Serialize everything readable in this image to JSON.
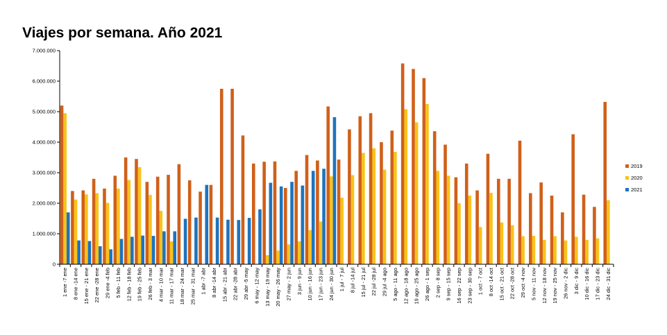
{
  "chart_data": {
    "type": "bar",
    "title": "Viajes por semana. Año 2021",
    "xlabel": "",
    "ylabel": "",
    "ylim": [
      0,
      7000000
    ],
    "y_ticks": [
      0,
      1000000,
      2000000,
      3000000,
      4000000,
      5000000,
      6000000,
      7000000
    ],
    "y_tick_labels": [
      "0",
      "1.000.000",
      "2.000.000",
      "3.000.000",
      "4.000.000",
      "5.000.000",
      "6.000.000",
      "7.000.000"
    ],
    "grid": false,
    "legend_position": "right",
    "categories": [
      "1 ene -7 ene",
      "8 ene -14 ene",
      "15 ene - 21 ene",
      "22 ene -28 ene",
      "29 ene -4 feb",
      "5 feb - 11 feb",
      "12 feb - 18 feb",
      "19 feb - 25 feb",
      "26 feb - 3 mar",
      "4 mar - 10 mar",
      "11 mar - 17 mar",
      "18 mar - 24 mar",
      "25 mar - 31 mar",
      "1 abr -7 abr",
      "8 abr -14 abr",
      "15 abr - 21 abr",
      "22 abr -28 abr",
      "29 abr -5 may",
      "6 may - 12 may",
      "13 may - 19 may",
      "20 may - 26 may",
      "27 may - 2 jun",
      "3 jun - 9 jun",
      "10 jun - 16 jun",
      "17 jun - 23 jun",
      "24 jun - 30 jun",
      "1 jul - 7 jul",
      "8 jul -14 jul",
      "15 jul - 21 jul",
      "22 jul -28 jul",
      "29 jul -4 ago",
      "5 ago - 11 ago",
      "12 ago - 18 ago",
      "19 ago - 25 ago",
      "26 ago - 1 sep",
      "2 sep - 8 sep",
      "9 sep - 15 sep",
      "16 sep - 22 sep",
      "23 sep - 30 sep",
      "1 oct - 7 oct",
      "8 oct -14 oct",
      "15 oct - 21 oct",
      "22 oct -28 oct",
      "29 oct -4 nov",
      "5 nov - 11 nov",
      "12 nov - 18 nov",
      "19 nov - 25 nov",
      "26 nov - 2 dic",
      "3 dic - 9 dic",
      "10 dic - 16 dic",
      "17 dic - 23 dic",
      "24 dic - 31 dic"
    ],
    "series": [
      {
        "name": "2019",
        "color": "#D0601A",
        "values": [
          5200000,
          2400000,
          2420000,
          2800000,
          2480000,
          2900000,
          3500000,
          3450000,
          2700000,
          2870000,
          2930000,
          3280000,
          2750000,
          2380000,
          2600000,
          5750000,
          5750000,
          4220000,
          3300000,
          3360000,
          3370000,
          2500000,
          3060000,
          3580000,
          3400000,
          5170000,
          3430000,
          4420000,
          4850000,
          4950000,
          4000000,
          4380000,
          6580000,
          6400000,
          6100000,
          4360000,
          3920000,
          2850000,
          3300000,
          2420000,
          3620000,
          2800000,
          2800000,
          4050000,
          2330000,
          2680000,
          2250000,
          1700000,
          4260000,
          2280000,
          1880000,
          5320000
        ]
      },
      {
        "name": "2020",
        "color": "#F7C21B",
        "values": [
          4950000,
          2120000,
          2290000,
          2330000,
          2010000,
          2480000,
          2760000,
          3180000,
          2270000,
          1750000,
          750000,
          0,
          0,
          0,
          0,
          0,
          0,
          0,
          0,
          300000,
          450000,
          650000,
          750000,
          1120000,
          1400000,
          2880000,
          2180000,
          2920000,
          3650000,
          3800000,
          3100000,
          3680000,
          5080000,
          4650000,
          5250000,
          3060000,
          2900000,
          2000000,
          2250000,
          1220000,
          2340000,
          1370000,
          1280000,
          920000,
          930000,
          800000,
          920000,
          780000,
          900000,
          800000,
          850000,
          2100000
        ]
      },
      {
        "name": "2021",
        "color": "#1F73BD",
        "values": [
          1700000,
          780000,
          760000,
          590000,
          490000,
          830000,
          900000,
          940000,
          930000,
          1080000,
          1080000,
          1490000,
          1530000,
          2600000,
          1530000,
          1460000,
          1450000,
          1520000,
          1800000,
          2670000,
          2550000,
          2700000,
          2580000,
          3060000,
          3130000,
          4820000,
          0,
          0,
          0,
          0,
          0,
          0,
          0,
          0,
          0,
          0,
          0,
          0,
          0,
          0,
          0,
          0,
          0,
          0,
          0,
          0,
          0,
          0,
          0,
          0,
          0,
          0
        ]
      }
    ]
  }
}
